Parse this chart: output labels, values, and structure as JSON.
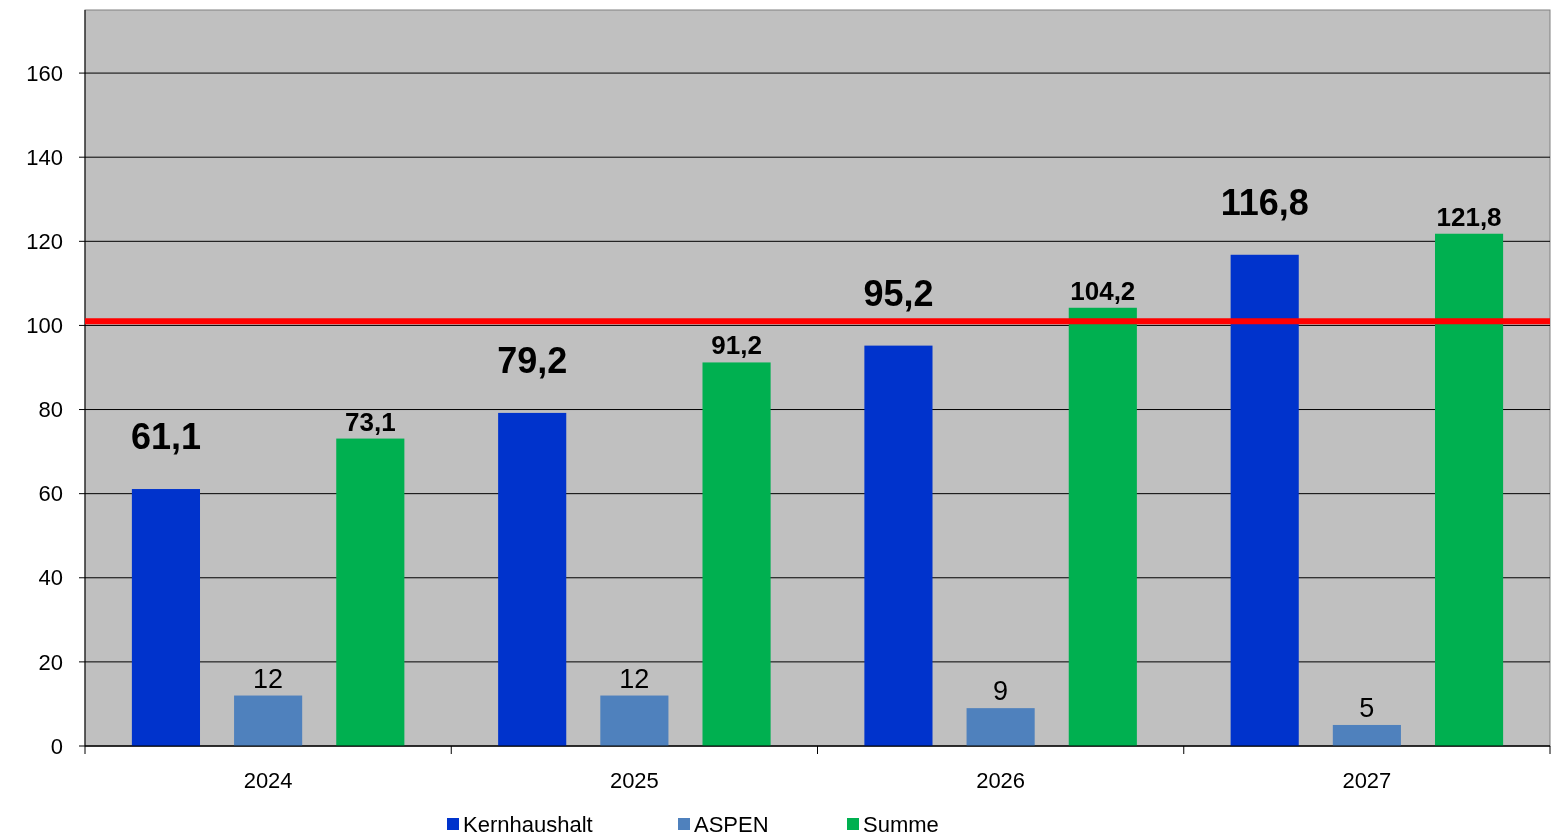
{
  "chart_data": {
    "type": "bar",
    "categories": [
      "2024",
      "2025",
      "2026",
      "2027"
    ],
    "series": [
      {
        "name": "Kernhaushalt",
        "color": "#0033cc",
        "values": [
          61.1,
          79.2,
          95.2,
          116.8
        ],
        "value_labels": [
          "61,1",
          "79,2",
          "95,2",
          "116,8"
        ]
      },
      {
        "name": "ASPEN",
        "color": "#4f81bd",
        "values": [
          12,
          12,
          9,
          5
        ],
        "value_labels": [
          "12",
          "12",
          "9",
          "5"
        ]
      },
      {
        "name": "Summe",
        "color": "#00b050",
        "values": [
          73.1,
          91.2,
          104.2,
          121.8
        ],
        "value_labels": [
          "73,1",
          "91,2",
          "104,2",
          "121,8"
        ]
      }
    ],
    "ylim": [
      0,
      175
    ],
    "yticks": [
      0,
      20,
      40,
      60,
      80,
      100,
      120,
      140,
      160
    ],
    "grid": "y",
    "legend": "bottom",
    "ref_lines": [
      {
        "axis": "y",
        "value": 101,
        "color": "#ff0000"
      }
    ]
  }
}
